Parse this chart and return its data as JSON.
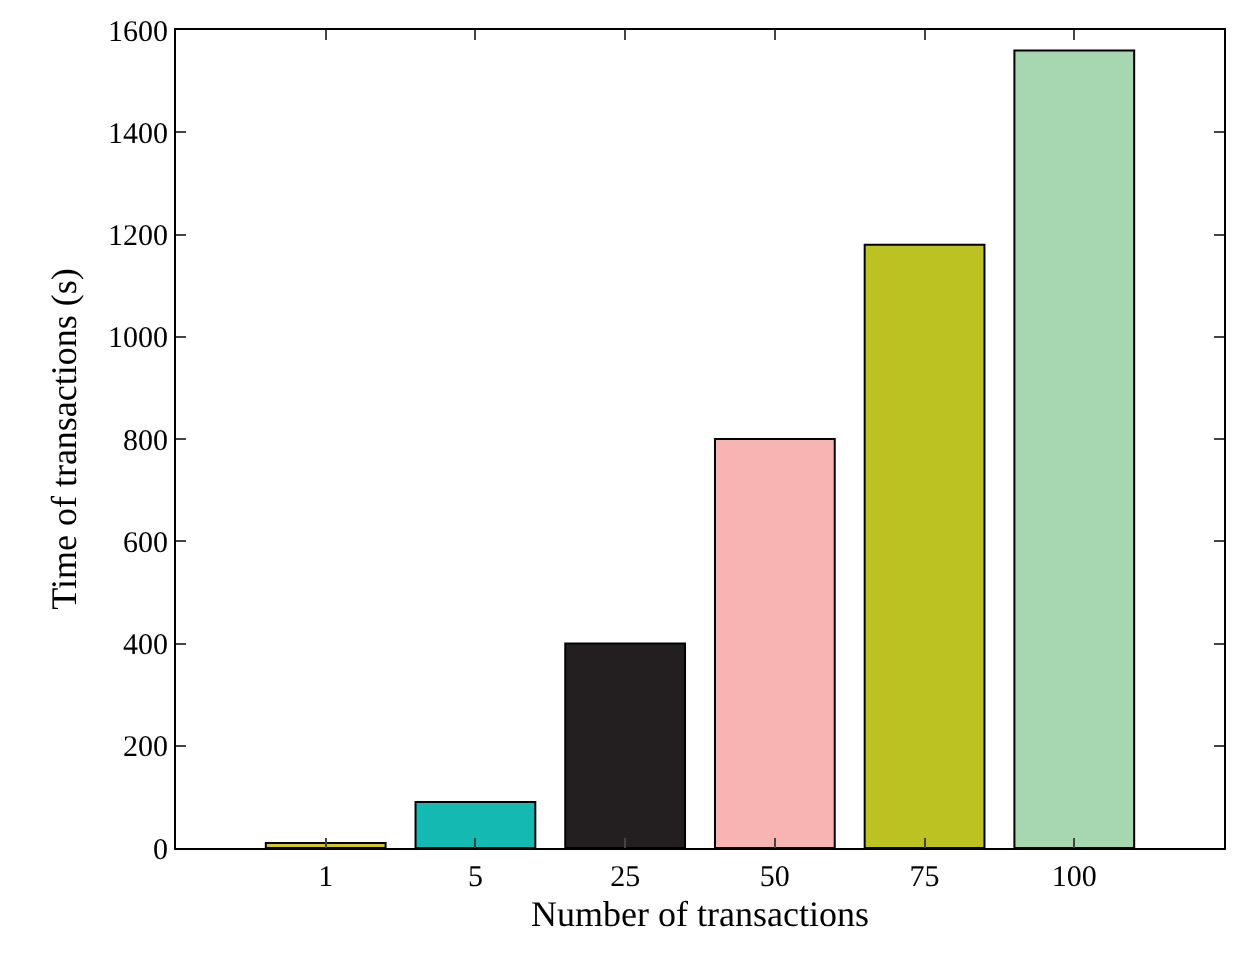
{
  "chart_data": {
    "type": "bar",
    "xlabel": "Number of transactions",
    "ylabel": "Time of transactions (s)",
    "categories": [
      "1",
      "5",
      "25",
      "50",
      "75",
      "100"
    ],
    "values": [
      10,
      90,
      400,
      800,
      1180,
      1560
    ],
    "colors": [
      "#d6c42c",
      "#14bab2",
      "#231f20",
      "#f8b4b2",
      "#bcc222",
      "#a6d7b0"
    ],
    "ylim": [
      0,
      1600
    ],
    "yticks": [
      0,
      200,
      400,
      600,
      800,
      1000,
      1200,
      1400,
      1600
    ],
    "grid": false
  }
}
